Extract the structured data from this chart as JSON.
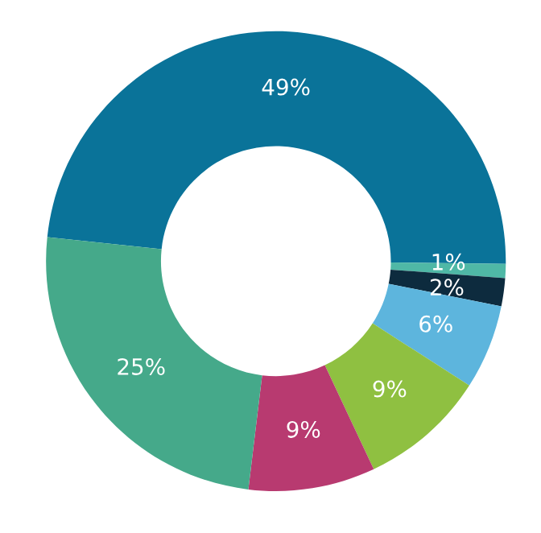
{
  "chart_data": {
    "type": "donut",
    "categories": [
      null,
      null,
      null,
      null,
      null,
      null,
      null
    ],
    "values": [
      49,
      1,
      2,
      6,
      9,
      9,
      25
    ],
    "colors": [
      "#0a7399",
      "#4fb8a6",
      "#0d2b3e",
      "#5db5dd",
      "#8fc041",
      "#b83a70",
      "#45a98a"
    ],
    "value_labels": [
      "49%",
      "1%",
      "2%",
      "6%",
      "9%",
      "9%",
      "25%"
    ],
    "legend": false
  }
}
